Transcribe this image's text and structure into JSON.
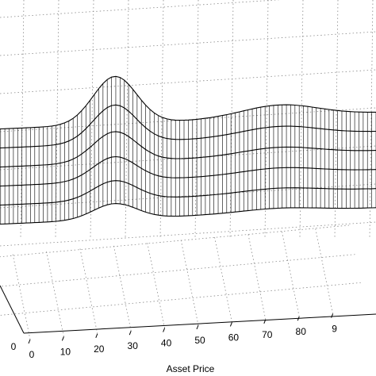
{
  "chart_data": {
    "type": "surface3d",
    "title": "",
    "xlabel": "Asset Price",
    "x_ticks": [
      "0",
      "10",
      "20",
      "30",
      "40",
      "50",
      "60",
      "70",
      "80",
      "9"
    ],
    "x_range": [
      0,
      100
    ],
    "partial_axis_ticks": [
      "0"
    ],
    "grid": true,
    "surface": {
      "x_min": 0,
      "x_max": 100,
      "x_samples": 90,
      "rows": 6,
      "base_level": 0.0,
      "main_peak": {
        "center": 32,
        "amplitude": 1.0,
        "width": 8
      },
      "secondary_bump": {
        "center": 75,
        "amplitude": 0.25,
        "width": 14
      },
      "row_decay": 0.8
    }
  }
}
